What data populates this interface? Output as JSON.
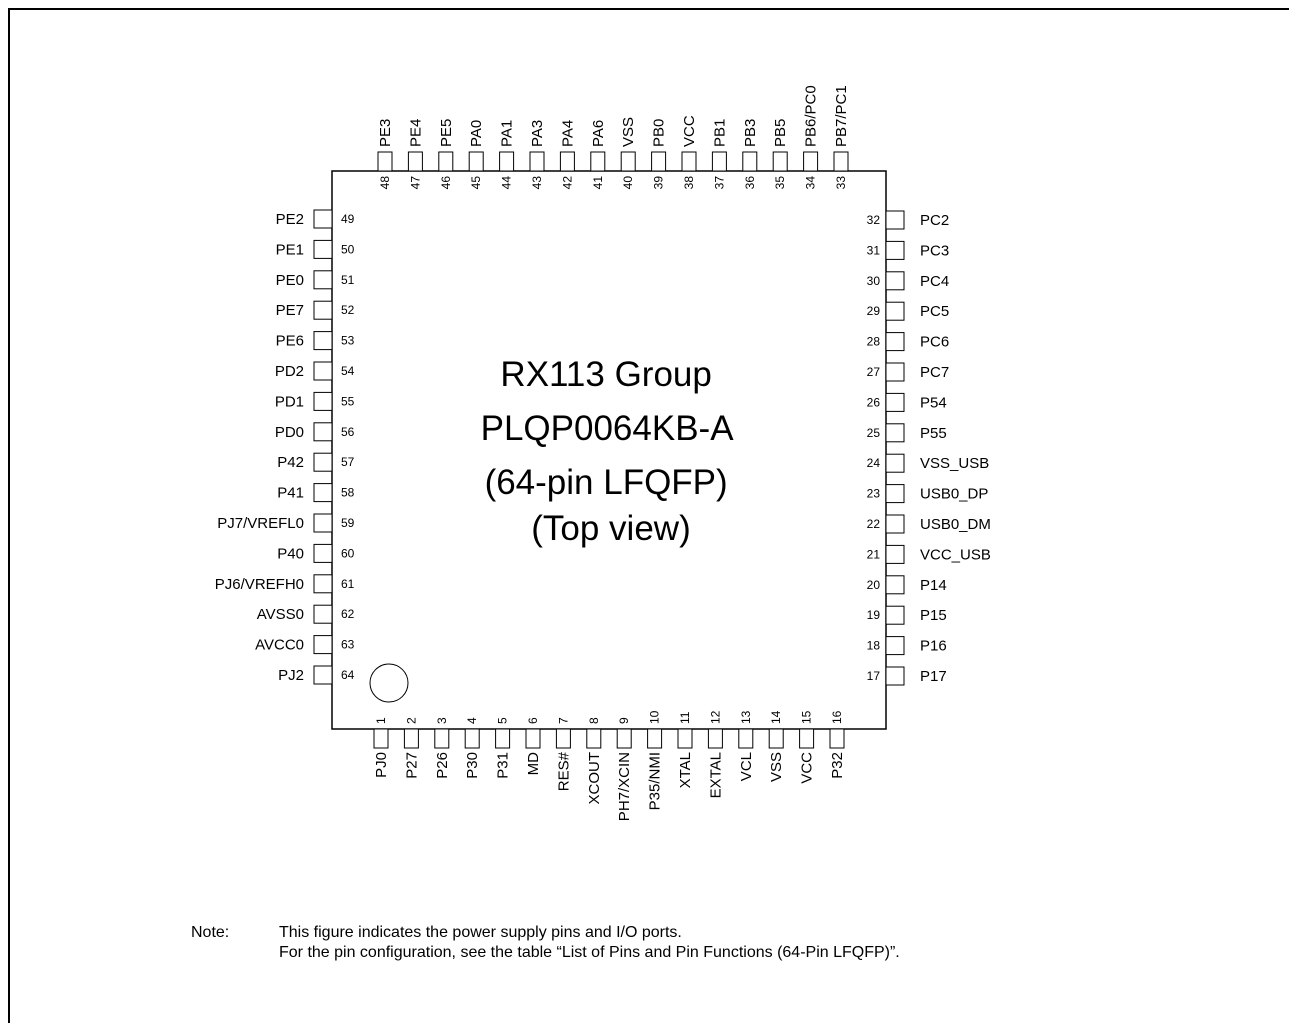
{
  "chip": {
    "title_lines": [
      "RX113 Group",
      "PLQP0064KB-A",
      "(64-pin LFQFP)",
      "(Top view)"
    ]
  },
  "pins": {
    "bottom": [
      {
        "num": "1",
        "name": "PJ0"
      },
      {
        "num": "2",
        "name": "P27"
      },
      {
        "num": "3",
        "name": "P26"
      },
      {
        "num": "4",
        "name": "P30"
      },
      {
        "num": "5",
        "name": "P31"
      },
      {
        "num": "6",
        "name": "MD"
      },
      {
        "num": "7",
        "name": "RES#"
      },
      {
        "num": "8",
        "name": "XCOUT"
      },
      {
        "num": "9",
        "name": "PH7/XCIN"
      },
      {
        "num": "10",
        "name": "P35/NMI"
      },
      {
        "num": "11",
        "name": "XTAL"
      },
      {
        "num": "12",
        "name": "EXTAL"
      },
      {
        "num": "13",
        "name": "VCL"
      },
      {
        "num": "14",
        "name": "VSS"
      },
      {
        "num": "15",
        "name": "VCC"
      },
      {
        "num": "16",
        "name": "P32"
      }
    ],
    "right": [
      {
        "num": "17",
        "name": "P17"
      },
      {
        "num": "18",
        "name": "P16"
      },
      {
        "num": "19",
        "name": "P15"
      },
      {
        "num": "20",
        "name": "P14"
      },
      {
        "num": "21",
        "name": "VCC_USB"
      },
      {
        "num": "22",
        "name": "USB0_DM"
      },
      {
        "num": "23",
        "name": "USB0_DP"
      },
      {
        "num": "24",
        "name": "VSS_USB"
      },
      {
        "num": "25",
        "name": "P55"
      },
      {
        "num": "26",
        "name": "P54"
      },
      {
        "num": "27",
        "name": "PC7"
      },
      {
        "num": "28",
        "name": "PC6"
      },
      {
        "num": "29",
        "name": "PC5"
      },
      {
        "num": "30",
        "name": "PC4"
      },
      {
        "num": "31",
        "name": "PC3"
      },
      {
        "num": "32",
        "name": "PC2"
      }
    ],
    "top": [
      {
        "num": "33",
        "name": "PB7/PC1"
      },
      {
        "num": "34",
        "name": "PB6/PC0"
      },
      {
        "num": "35",
        "name": "PB5"
      },
      {
        "num": "36",
        "name": "PB3"
      },
      {
        "num": "37",
        "name": "PB1"
      },
      {
        "num": "38",
        "name": "VCC"
      },
      {
        "num": "39",
        "name": "PB0"
      },
      {
        "num": "40",
        "name": "VSS"
      },
      {
        "num": "41",
        "name": "PA6"
      },
      {
        "num": "42",
        "name": "PA4"
      },
      {
        "num": "43",
        "name": "PA3"
      },
      {
        "num": "44",
        "name": "PA1"
      },
      {
        "num": "45",
        "name": "PA0"
      },
      {
        "num": "46",
        "name": "PE5"
      },
      {
        "num": "47",
        "name": "PE4"
      },
      {
        "num": "48",
        "name": "PE3"
      }
    ],
    "left": [
      {
        "num": "49",
        "name": "PE2"
      },
      {
        "num": "50",
        "name": "PE1"
      },
      {
        "num": "51",
        "name": "PE0"
      },
      {
        "num": "52",
        "name": "PE7"
      },
      {
        "num": "53",
        "name": "PE6"
      },
      {
        "num": "54",
        "name": "PD2"
      },
      {
        "num": "55",
        "name": "PD1"
      },
      {
        "num": "56",
        "name": "PD0"
      },
      {
        "num": "57",
        "name": "P42"
      },
      {
        "num": "58",
        "name": "P41"
      },
      {
        "num": "59",
        "name": "PJ7/VREFL0"
      },
      {
        "num": "60",
        "name": "P40"
      },
      {
        "num": "61",
        "name": "PJ6/VREFH0"
      },
      {
        "num": "62",
        "name": "AVSS0"
      },
      {
        "num": "63",
        "name": "AVCC0"
      },
      {
        "num": "64",
        "name": "PJ2"
      }
    ]
  },
  "note": {
    "label": "Note:",
    "line1": "This figure indicates the power supply pins and I/O ports.",
    "line2": "For the pin configuration, see the table “List of Pins and Pin Functions (64-Pin LFQFP)”."
  }
}
